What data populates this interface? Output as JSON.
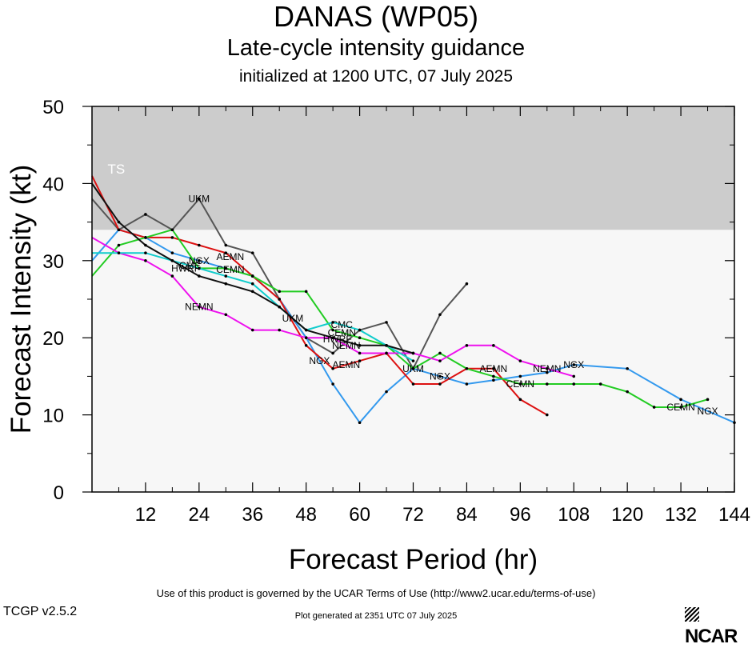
{
  "header": {
    "title": "DANAS (WP05)",
    "subtitle": "Late-cycle intensity guidance",
    "init_line": "initialized at 1200 UTC, 07 July 2025"
  },
  "footer": {
    "terms": "Use of this product is governed by the UCAR Terms of Use (http://www2.ucar.edu/terms-of-use)",
    "version": "TCGP v2.5.2",
    "generated": "Plot generated at 2351 UTC   07 July 2025",
    "logo": "NCAR"
  },
  "chart_data": {
    "type": "line",
    "xlabel": "Forecast Period (hr)",
    "ylabel": "Forecast Intensity (kt)",
    "xlim": [
      0,
      144
    ],
    "ylim": [
      0,
      50
    ],
    "x_ticks": [
      12,
      24,
      36,
      48,
      60,
      72,
      84,
      96,
      108,
      120,
      132,
      144
    ],
    "y_ticks": [
      0,
      10,
      20,
      30,
      40,
      50
    ],
    "bands": [
      {
        "label": "TS",
        "from": 34,
        "to": 50,
        "color": "#cccccc"
      }
    ],
    "background_color": "#f7f7f7",
    "series": [
      {
        "name": "UKM",
        "color": "#555555",
        "points": [
          [
            0,
            38
          ],
          [
            6,
            34
          ],
          [
            12,
            36
          ],
          [
            18,
            34
          ],
          [
            24,
            38
          ],
          [
            30,
            32
          ],
          [
            36,
            31
          ],
          [
            42,
            25
          ],
          [
            48,
            20
          ],
          [
            54,
            18
          ],
          [
            60,
            21
          ],
          [
            66,
            22
          ],
          [
            72,
            16
          ],
          [
            78,
            23
          ],
          [
            84,
            27
          ]
        ],
        "labels": [
          [
            24,
            "UKM"
          ],
          [
            45,
            "UKM"
          ],
          [
            72,
            "UKM"
          ]
        ]
      },
      {
        "name": "NGX",
        "color": "#3399ee",
        "points": [
          [
            0,
            30
          ],
          [
            6,
            34
          ],
          [
            12,
            33
          ],
          [
            18,
            31
          ],
          [
            24,
            30
          ],
          [
            30,
            29
          ],
          [
            36,
            28
          ],
          [
            42,
            25
          ],
          [
            48,
            20
          ],
          [
            54,
            14
          ],
          [
            60,
            9
          ],
          [
            66,
            13
          ],
          [
            72,
            16
          ],
          [
            78,
            15
          ],
          [
            84,
            14
          ],
          [
            90,
            14.5
          ],
          [
            96,
            15
          ],
          [
            102,
            15.5
          ],
          [
            108,
            16.5
          ],
          [
            120,
            16
          ],
          [
            132,
            12
          ],
          [
            144,
            9
          ]
        ],
        "labels": [
          [
            24,
            "NGX"
          ],
          [
            51,
            "NGX"
          ],
          [
            78,
            "NGX"
          ],
          [
            108,
            "NGX"
          ],
          [
            138,
            "NGX"
          ]
        ]
      },
      {
        "name": "AEMN",
        "color": "#dd1111",
        "points": [
          [
            0,
            41
          ],
          [
            6,
            34
          ],
          [
            12,
            33
          ],
          [
            18,
            33
          ],
          [
            24,
            32
          ],
          [
            30,
            31
          ],
          [
            36,
            28
          ],
          [
            42,
            25
          ],
          [
            48,
            19
          ],
          [
            54,
            16
          ],
          [
            60,
            17
          ],
          [
            66,
            18
          ],
          [
            72,
            14
          ],
          [
            78,
            14
          ],
          [
            84,
            16
          ],
          [
            90,
            16
          ],
          [
            96,
            12
          ],
          [
            102,
            10
          ]
        ],
        "labels": [
          [
            31,
            "AEMN"
          ],
          [
            57,
            "AEMN"
          ],
          [
            90,
            "AEMN"
          ]
        ]
      },
      {
        "name": "CEMN",
        "color": "#22cc22",
        "points": [
          [
            0,
            28
          ],
          [
            6,
            32
          ],
          [
            12,
            33
          ],
          [
            18,
            34
          ],
          [
            24,
            29
          ],
          [
            30,
            29
          ],
          [
            36,
            28
          ],
          [
            42,
            26
          ],
          [
            48,
            26
          ],
          [
            54,
            21
          ],
          [
            60,
            20
          ],
          [
            66,
            19
          ],
          [
            72,
            16
          ],
          [
            78,
            18
          ],
          [
            84,
            16
          ],
          [
            90,
            15
          ],
          [
            96,
            14
          ],
          [
            102,
            14
          ],
          [
            108,
            14
          ],
          [
            114,
            14
          ],
          [
            120,
            13
          ],
          [
            126,
            11
          ],
          [
            132,
            11
          ],
          [
            138,
            12
          ]
        ],
        "labels": [
          [
            31,
            "CEMN"
          ],
          [
            56,
            "CEMN"
          ],
          [
            96,
            "CEMN"
          ],
          [
            132,
            "CEMN"
          ]
        ]
      },
      {
        "name": "NEMN",
        "color": "#ee11ee",
        "points": [
          [
            0,
            33
          ],
          [
            6,
            31
          ],
          [
            12,
            30
          ],
          [
            18,
            28
          ],
          [
            24,
            24
          ],
          [
            30,
            23
          ],
          [
            36,
            21
          ],
          [
            42,
            21
          ],
          [
            48,
            20
          ],
          [
            54,
            20
          ],
          [
            60,
            18
          ],
          [
            66,
            18
          ],
          [
            72,
            18
          ],
          [
            78,
            17
          ],
          [
            84,
            19
          ],
          [
            90,
            19
          ],
          [
            96,
            17
          ],
          [
            102,
            16
          ],
          [
            108,
            15
          ]
        ],
        "labels": [
          [
            24,
            "NEMN"
          ],
          [
            57,
            "NEMN"
          ],
          [
            102,
            "NEMN"
          ]
        ]
      },
      {
        "name": "CMC",
        "color": "#11cccc",
        "points": [
          [
            0,
            31
          ],
          [
            6,
            31
          ],
          [
            12,
            31
          ],
          [
            18,
            30
          ],
          [
            24,
            29
          ],
          [
            30,
            28
          ],
          [
            36,
            27
          ],
          [
            42,
            24
          ],
          [
            48,
            21
          ],
          [
            54,
            22
          ],
          [
            60,
            21
          ],
          [
            66,
            19
          ],
          [
            72,
            17
          ]
        ],
        "labels": [
          [
            22,
            "CMC"
          ],
          [
            56,
            "CMC"
          ]
        ]
      },
      {
        "name": "HWRF",
        "color": "#111111",
        "points": [
          [
            0,
            40
          ],
          [
            6,
            35
          ],
          [
            12,
            32
          ],
          [
            18,
            30
          ],
          [
            24,
            28
          ],
          [
            30,
            27
          ],
          [
            36,
            26
          ],
          [
            42,
            24
          ],
          [
            48,
            21
          ],
          [
            54,
            20
          ],
          [
            60,
            19
          ],
          [
            66,
            19
          ],
          [
            72,
            18
          ]
        ],
        "labels": [
          [
            21,
            "HWRF"
          ],
          [
            55,
            "HWRF"
          ]
        ]
      }
    ]
  }
}
